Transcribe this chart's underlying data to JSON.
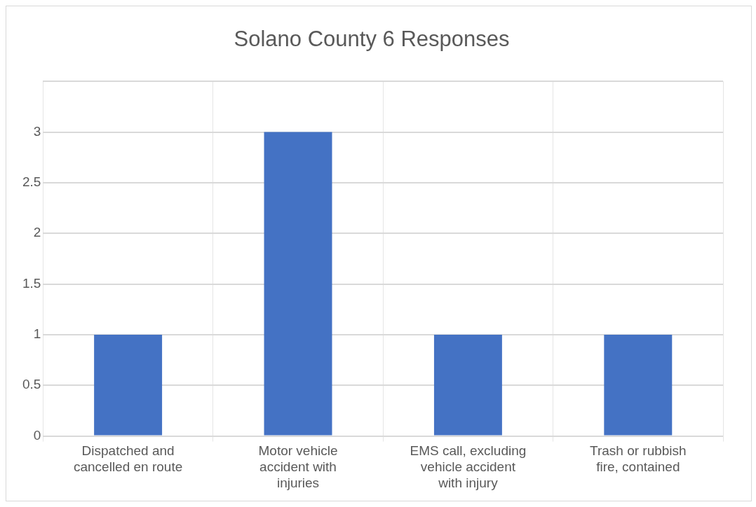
{
  "chart_data": {
    "type": "bar",
    "title": "Solano County 6 Responses",
    "categories": [
      "Dispatched and cancelled en route",
      "Motor vehicle accident with injuries",
      "EMS call, excluding vehicle accident with injury",
      "Trash or rubbish fire, contained"
    ],
    "values": [
      1,
      3,
      1,
      1
    ],
    "color": "#4472c4",
    "ylim": [
      0,
      3.5
    ],
    "yticks": [
      0,
      0.5,
      1,
      1.5,
      2,
      2.5,
      3,
      {
        "value": 3.5,
        "label": null
      }
    ],
    "grid": true
  }
}
